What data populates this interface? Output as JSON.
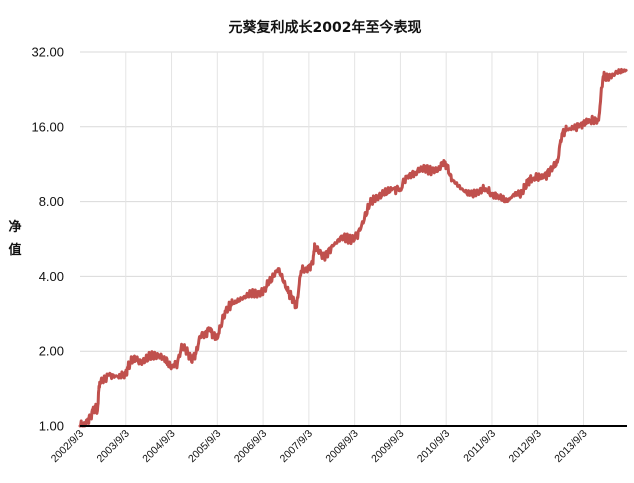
{
  "chart_data": {
    "type": "line",
    "title": "元葵复利成长2002年至今表现",
    "ylabel": "净值",
    "xlabel": "",
    "y_scale": "log2",
    "ylim": [
      1,
      32
    ],
    "y_ticks": [
      "1.00",
      "2.00",
      "4.00",
      "8.00",
      "16.00",
      "32.00"
    ],
    "x_ticks": [
      "2002/9/3",
      "2003/9/3",
      "2004/9/3",
      "2005/9/3",
      "2006/9/3",
      "2007/9/3",
      "2008/9/3",
      "2009/9/3",
      "2010/9/3",
      "2011/9/3",
      "2012/9/3",
      "2013/9/3"
    ],
    "grid": true,
    "legend": "none",
    "line_color": "#c0504d",
    "series": [
      {
        "x": [
          2002.67,
          2002.8,
          2002.9,
          2003.0,
          2003.05,
          2003.1,
          2003.3,
          2003.5,
          2003.67,
          2003.7,
          2003.8,
          2003.9,
          2004.0,
          2004.2,
          2004.4,
          2004.5,
          2004.6,
          2004.67,
          2004.8,
          2004.9,
          2005.0,
          2005.1,
          2005.2,
          2005.3,
          2005.4,
          2005.5,
          2005.6,
          2005.67,
          2005.8,
          2005.9,
          2006.0,
          2006.2,
          2006.4,
          2006.6,
          2006.67,
          2006.8,
          2007.0,
          2007.2,
          2007.3,
          2007.4,
          2007.5,
          2007.67,
          2007.75,
          2007.8,
          2007.9,
          2008.0,
          2008.2,
          2008.4,
          2008.5,
          2008.6,
          2008.67,
          2008.8,
          2009.0,
          2009.1,
          2009.3,
          2009.5,
          2009.67,
          2009.8,
          2010.0,
          2010.2,
          2010.4,
          2010.5,
          2010.6,
          2010.67,
          2010.8,
          2011.0,
          2011.2,
          2011.4,
          2011.5,
          2011.67,
          2011.8,
          2012.0,
          2012.2,
          2012.3,
          2012.4,
          2012.5,
          2012.67,
          2012.8,
          2013.0,
          2013.1,
          2013.2,
          2013.3,
          2013.5,
          2013.67,
          2013.8,
          2014.0,
          2014.1,
          2014.2,
          2014.4,
          2014.6
        ],
        "values": [
          1.0,
          1.02,
          1.1,
          1.2,
          1.15,
          1.5,
          1.6,
          1.58,
          1.62,
          1.7,
          1.85,
          1.85,
          1.8,
          1.9,
          1.92,
          1.88,
          1.78,
          1.72,
          1.8,
          2.1,
          2.0,
          1.85,
          1.95,
          2.3,
          2.35,
          2.45,
          2.3,
          2.25,
          2.75,
          3.0,
          3.1,
          3.25,
          3.4,
          3.4,
          3.5,
          3.75,
          4.3,
          3.5,
          3.3,
          3.0,
          4.2,
          4.3,
          4.55,
          5.3,
          5.0,
          4.8,
          5.3,
          5.8,
          5.7,
          5.6,
          5.7,
          6.2,
          7.8,
          8.2,
          8.6,
          9.0,
          9.0,
          10.0,
          10.5,
          11.0,
          10.6,
          10.8,
          11.5,
          11.2,
          9.8,
          9.0,
          8.5,
          8.8,
          9.0,
          8.6,
          8.4,
          8.0,
          8.7,
          8.5,
          9.3,
          9.8,
          10.0,
          10.0,
          11.0,
          11.5,
          15.0,
          15.5,
          16.0,
          16.5,
          17.0,
          17.0,
          25.5,
          25.0,
          26.5,
          27.0
        ]
      }
    ]
  }
}
